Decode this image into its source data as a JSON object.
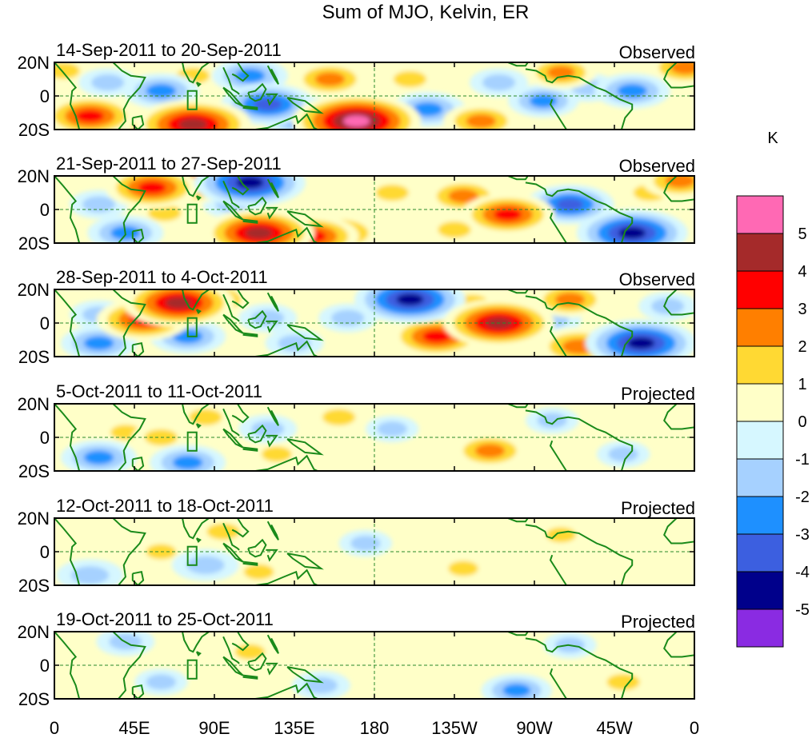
{
  "chart_data": {
    "type": "heatmap",
    "title": "Sum of MJO, Kelvin, ER",
    "colorbar": {
      "unit": "K",
      "tick_labels": [
        "5",
        "4",
        "3",
        "2",
        "1",
        "0",
        "-1",
        "-2",
        "-3",
        "-4",
        "-5"
      ],
      "levels": [
        {
          "range": "> 5",
          "color": "#ff69b4"
        },
        {
          "range": "4 to 5",
          "color": "#a52a2a"
        },
        {
          "range": "3 to 4",
          "color": "#ff0000"
        },
        {
          "range": "2 to 3",
          "color": "#ff7f00"
        },
        {
          "range": "1 to 2",
          "color": "#ffd933"
        },
        {
          "range": "0 to 1",
          "color": "#ffffc8"
        },
        {
          "range": "-1 to 0",
          "color": "#d6f7ff"
        },
        {
          "range": "-2 to -1",
          "color": "#a6d1ff"
        },
        {
          "range": "-3 to -2",
          "color": "#1e90ff"
        },
        {
          "range": "-4 to -3",
          "color": "#3c5fe0"
        },
        {
          "range": "-5 to -4",
          "color": "#00008b"
        },
        {
          "range": "< -5",
          "color": "#8a2be2"
        }
      ]
    },
    "x_axis": {
      "range_deg_east": [
        0,
        360
      ],
      "ticks": [
        {
          "lon": 0,
          "label": "0"
        },
        {
          "lon": 45,
          "label": "45E"
        },
        {
          "lon": 90,
          "label": "90E"
        },
        {
          "lon": 135,
          "label": "135E"
        },
        {
          "lon": 180,
          "label": "180"
        },
        {
          "lon": 225,
          "label": "135W"
        },
        {
          "lon": 270,
          "label": "90W"
        },
        {
          "lon": 315,
          "label": "45W"
        },
        {
          "lon": 360,
          "label": "0"
        }
      ]
    },
    "y_axis": {
      "range_deg": [
        -20,
        20
      ],
      "ticks": [
        {
          "lat": 20,
          "label": "20N"
        },
        {
          "lat": 0,
          "label": "0"
        },
        {
          "lat": -20,
          "label": "20S"
        }
      ]
    },
    "panels": [
      {
        "period": "14-Sep-2011 to 20-Sep-2011",
        "status": "Observed",
        "features": [
          {
            "lon": 355,
            "lat": 17,
            "value": 2.5
          },
          {
            "lon": 5,
            "lat": 15,
            "value": 1.5
          },
          {
            "lon": 30,
            "lat": 8,
            "value": -1.5
          },
          {
            "lon": 20,
            "lat": -12,
            "value": 3.5
          },
          {
            "lon": 45,
            "lat": -14,
            "value": 1.5
          },
          {
            "lon": 60,
            "lat": 3,
            "value": -2.5
          },
          {
            "lon": 78,
            "lat": 12,
            "value": 1.5
          },
          {
            "lon": 78,
            "lat": -17,
            "value": 4.8
          },
          {
            "lon": 58,
            "lat": -18,
            "value": 2.5
          },
          {
            "lon": 110,
            "lat": 12,
            "value": -2.5
          },
          {
            "lon": 120,
            "lat": -5,
            "value": -3.5
          },
          {
            "lon": 140,
            "lat": -12,
            "value": -3.2
          },
          {
            "lon": 155,
            "lat": 10,
            "value": 2.5
          },
          {
            "lon": 170,
            "lat": -15,
            "value": 5.5
          },
          {
            "lon": 200,
            "lat": 10,
            "value": 1.5
          },
          {
            "lon": 210,
            "lat": -8,
            "value": -2.5
          },
          {
            "lon": 240,
            "lat": -15,
            "value": 2.5
          },
          {
            "lon": 250,
            "lat": 8,
            "value": -1.5
          },
          {
            "lon": 275,
            "lat": -3,
            "value": -2.2
          },
          {
            "lon": 285,
            "lat": 14,
            "value": 2.2
          },
          {
            "lon": 300,
            "lat": 5,
            "value": -1.5
          },
          {
            "lon": 325,
            "lat": 3,
            "value": -2.5
          }
        ]
      },
      {
        "period": "21-Sep-2011 to 27-Sep-2011",
        "status": "Observed",
        "features": [
          {
            "lon": 25,
            "lat": 3,
            "value": -1.5
          },
          {
            "lon": 40,
            "lat": -14,
            "value": -2.5
          },
          {
            "lon": 55,
            "lat": 13,
            "value": 3.5
          },
          {
            "lon": 75,
            "lat": 15,
            "value": 3.2
          },
          {
            "lon": 62,
            "lat": -2,
            "value": 1.5
          },
          {
            "lon": 110,
            "lat": 16,
            "value": -4.5
          },
          {
            "lon": 100,
            "lat": 3,
            "value": -1.5
          },
          {
            "lon": 115,
            "lat": -14,
            "value": 4.5
          },
          {
            "lon": 145,
            "lat": -16,
            "value": 3.5
          },
          {
            "lon": 160,
            "lat": -14,
            "value": 3.0
          },
          {
            "lon": 190,
            "lat": 10,
            "value": 1.5
          },
          {
            "lon": 230,
            "lat": 8,
            "value": 2.5
          },
          {
            "lon": 255,
            "lat": -3,
            "value": 3.5
          },
          {
            "lon": 225,
            "lat": -12,
            "value": 1.5
          },
          {
            "lon": 290,
            "lat": 3,
            "value": -3.2
          },
          {
            "lon": 325,
            "lat": -14,
            "value": -4.5
          },
          {
            "lon": 335,
            "lat": 10,
            "value": 1.5
          },
          {
            "lon": 352,
            "lat": 17,
            "value": 2.5
          }
        ]
      },
      {
        "period": "28-Sep-2011 to 4-Oct-2011",
        "status": "Observed",
        "features": [
          {
            "lon": 25,
            "lat": 5,
            "value": -1.5
          },
          {
            "lon": 25,
            "lat": -12,
            "value": -2.5
          },
          {
            "lon": 50,
            "lat": 2,
            "value": 3.5
          },
          {
            "lon": 70,
            "lat": 12,
            "value": 4.5
          },
          {
            "lon": 90,
            "lat": 14,
            "value": 2.5
          },
          {
            "lon": 75,
            "lat": -8,
            "value": -2.5
          },
          {
            "lon": 120,
            "lat": 3,
            "value": -1.5
          },
          {
            "lon": 135,
            "lat": -12,
            "value": -1.5
          },
          {
            "lon": 165,
            "lat": 3,
            "value": -1.5
          },
          {
            "lon": 200,
            "lat": 14,
            "value": -4.5
          },
          {
            "lon": 215,
            "lat": -8,
            "value": 3.5
          },
          {
            "lon": 250,
            "lat": 0,
            "value": 4.5
          },
          {
            "lon": 235,
            "lat": 12,
            "value": 1.5
          },
          {
            "lon": 290,
            "lat": 14,
            "value": 2.5
          },
          {
            "lon": 295,
            "lat": -14,
            "value": 3.0
          },
          {
            "lon": 330,
            "lat": -12,
            "value": -4.5
          },
          {
            "lon": 345,
            "lat": 10,
            "value": -1.5
          },
          {
            "lon": 280,
            "lat": 2,
            "value": -1.5
          }
        ]
      },
      {
        "period": "5-Oct-2011 to 11-Oct-2011",
        "status": "Projected",
        "features": [
          {
            "lon": 25,
            "lat": -12,
            "value": -2.5
          },
          {
            "lon": 40,
            "lat": 3,
            "value": 1.2
          },
          {
            "lon": 60,
            "lat": 0,
            "value": 1.5
          },
          {
            "lon": 75,
            "lat": -15,
            "value": -2.5
          },
          {
            "lon": 85,
            "lat": 12,
            "value": 1.5
          },
          {
            "lon": 120,
            "lat": 5,
            "value": -1.5
          },
          {
            "lon": 125,
            "lat": -10,
            "value": 1.2
          },
          {
            "lon": 160,
            "lat": 12,
            "value": 1.5
          },
          {
            "lon": 190,
            "lat": 5,
            "value": -1.2
          },
          {
            "lon": 245,
            "lat": -8,
            "value": 2.5
          },
          {
            "lon": 280,
            "lat": 10,
            "value": -1.2
          },
          {
            "lon": 320,
            "lat": -10,
            "value": -1.2
          }
        ]
      },
      {
        "period": "12-Oct-2011 to 18-Oct-2011",
        "status": "Projected",
        "features": [
          {
            "lon": 20,
            "lat": -14,
            "value": -2.0
          },
          {
            "lon": 60,
            "lat": 0,
            "value": 1.2
          },
          {
            "lon": 85,
            "lat": -8,
            "value": -2.0
          },
          {
            "lon": 95,
            "lat": 12,
            "value": 1.5
          },
          {
            "lon": 115,
            "lat": -12,
            "value": 1.2
          },
          {
            "lon": 175,
            "lat": 5,
            "value": -1.2
          },
          {
            "lon": 230,
            "lat": -10,
            "value": 1.2
          },
          {
            "lon": 285,
            "lat": 10,
            "value": 1.2
          }
        ]
      },
      {
        "period": "19-Oct-2011 to 25-Oct-2011",
        "status": "Projected",
        "features": [
          {
            "lon": 40,
            "lat": 14,
            "value": -1.5
          },
          {
            "lon": 60,
            "lat": -10,
            "value": -1.2
          },
          {
            "lon": 110,
            "lat": 8,
            "value": 1.2
          },
          {
            "lon": 150,
            "lat": -12,
            "value": -1.5
          },
          {
            "lon": 260,
            "lat": -15,
            "value": -2.2
          },
          {
            "lon": 320,
            "lat": -10,
            "value": 1.5
          },
          {
            "lon": 290,
            "lat": 12,
            "value": -1.2
          }
        ]
      }
    ]
  }
}
